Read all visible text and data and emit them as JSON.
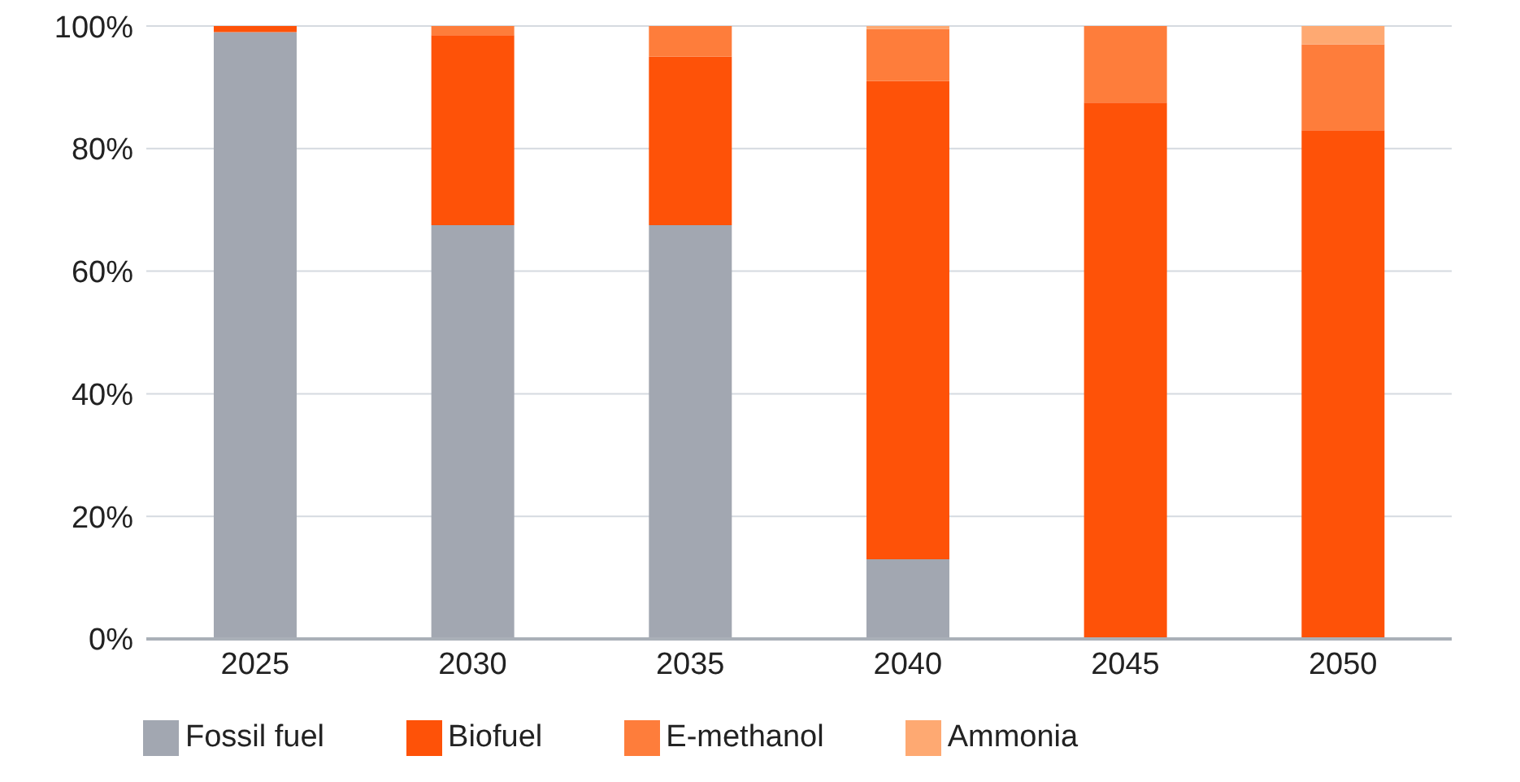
{
  "chart_data": {
    "type": "bar",
    "stacked": true,
    "categories": [
      "2025",
      "2030",
      "2035",
      "2040",
      "2045",
      "2050"
    ],
    "series": [
      {
        "name": "Fossil fuel",
        "color": "#a2a7b1",
        "values": [
          99,
          67.5,
          67.5,
          13,
          0,
          0
        ]
      },
      {
        "name": "Biofuel",
        "color": "#fe5208",
        "values": [
          1,
          31,
          27.5,
          78,
          87.5,
          83
        ]
      },
      {
        "name": "E-methanol",
        "color": "#fe7d3b",
        "values": [
          0,
          1.5,
          5,
          8.5,
          12.5,
          14
        ]
      },
      {
        "name": "Ammonia",
        "color": "#fea972",
        "values": [
          0,
          0,
          0,
          0.5,
          0,
          3
        ]
      }
    ],
    "ylim": [
      0,
      100
    ],
    "yticks": [
      {
        "value": 0,
        "label": "0%"
      },
      {
        "value": 20,
        "label": "20%"
      },
      {
        "value": 40,
        "label": "40%"
      },
      {
        "value": 60,
        "label": "60%"
      },
      {
        "value": 80,
        "label": "80%"
      },
      {
        "value": 100,
        "label": "100%"
      }
    ],
    "grid": "y",
    "legend": "bottom left"
  }
}
